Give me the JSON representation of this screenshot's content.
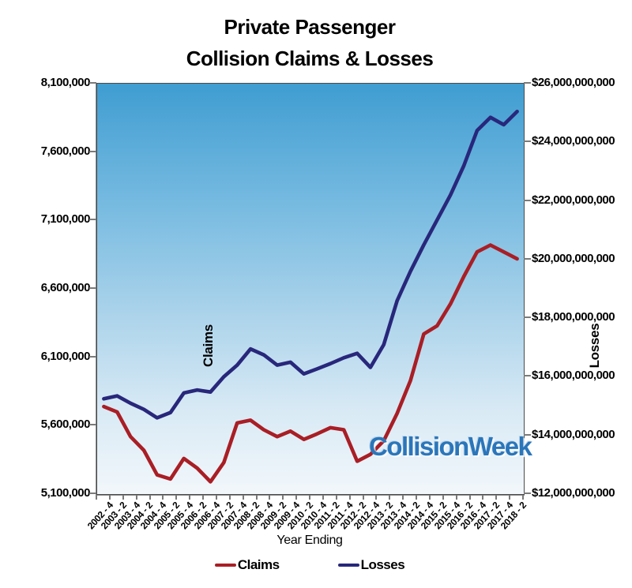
{
  "title_line1": "Private Passenger",
  "title_line2": "Collision Claims & Losses",
  "watermark": "CollisionWeek",
  "watermark_color": "#2b76ba",
  "axis_names": {
    "left_inner": "Claims",
    "right_inner": "Losses"
  },
  "x_axis_title": "Year Ending",
  "legend": [
    {
      "label": "Claims",
      "color": "#A91E25"
    },
    {
      "label": "Losses",
      "color": "#28277B"
    }
  ],
  "left_axis_tick_labels": [
    "8,100,000",
    "7,600,000",
    "7,100,000",
    "6,600,000",
    "6,100,000",
    "5,600,000",
    "5,100,000"
  ],
  "right_axis_tick_labels": [
    "$26,000,000,000",
    "$24,000,000,000",
    "$22,000,000,000",
    "$20,000,000,000",
    "$18,000,000,000",
    "$16,000,000,000",
    "$14,000,000,000",
    "$12,000,000,000"
  ],
  "chart_data": {
    "type": "line",
    "title": "Private Passenger Collision Claims & Losses",
    "xlabel": "Year Ending",
    "left_axis": {
      "label": "Claims",
      "min": 5100000,
      "max": 8100000,
      "tick_step": 500000
    },
    "right_axis": {
      "label": "Losses",
      "min": 12000000000,
      "max": 26000000000,
      "tick_step": 2000000000
    },
    "grid": false,
    "legend_position": "bottom",
    "categories": [
      "2002 - 4",
      "2003 - 2",
      "2003 - 4",
      "2004 - 2",
      "2004 - 4",
      "2005 - 2",
      "2005 - 4",
      "2006 - 2",
      "2006 - 4",
      "2007 - 2",
      "2007 - 4",
      "2008 - 2",
      "2008 - 4",
      "2009 - 2",
      "2009 - 4",
      "2010 - 2",
      "2010 - 4",
      "2011 - 2",
      "2011 - 4",
      "2012 - 2",
      "2012 - 4",
      "2013 - 2",
      "2013 - 4",
      "2014 - 2",
      "2014 - 4",
      "2015 - 2",
      "2015 - 4",
      "2016 - 2",
      "2016 - 4",
      "2017 - 2",
      "2017 - 4",
      "2018 - 2"
    ],
    "series": [
      {
        "name": "Claims",
        "axis": "left",
        "color": "#A91E25",
        "values": [
          5740000,
          5700000,
          5520000,
          5420000,
          5240000,
          5210000,
          5360000,
          5290000,
          5190000,
          5330000,
          5620000,
          5640000,
          5570000,
          5520000,
          5560000,
          5500000,
          5540000,
          5585000,
          5570000,
          5340000,
          5390000,
          5490000,
          5690000,
          5930000,
          6270000,
          6330000,
          6490000,
          6690000,
          6870000,
          6920000,
          6870000,
          6820000
        ]
      },
      {
        "name": "Losses",
        "axis": "right",
        "color": "#28277B",
        "values": [
          15250000000,
          15350000000,
          15100000000,
          14890000000,
          14600000000,
          14780000000,
          15450000000,
          15550000000,
          15480000000,
          16000000000,
          16400000000,
          16950000000,
          16750000000,
          16400000000,
          16500000000,
          16100000000,
          16270000000,
          16450000000,
          16650000000,
          16800000000,
          16320000000,
          17100000000,
          18600000000,
          19600000000,
          20500000000,
          21350000000,
          22200000000,
          23200000000,
          24400000000,
          24850000000,
          24600000000,
          25050000000
        ]
      }
    ]
  }
}
